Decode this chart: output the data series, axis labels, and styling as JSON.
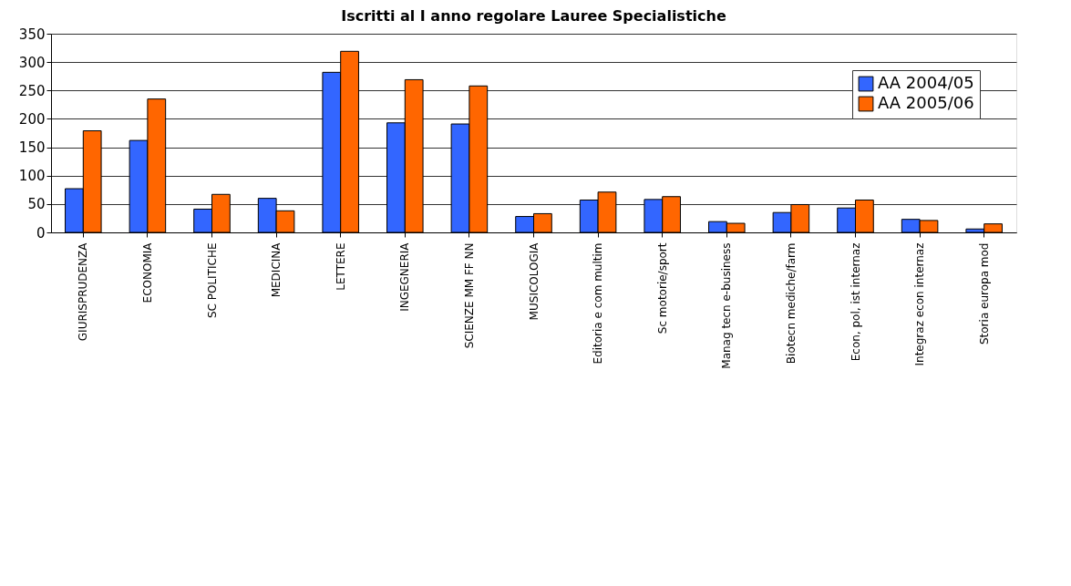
{
  "chart_data": {
    "type": "bar",
    "title": "Iscritti al I anno regolare Lauree Specialistiche",
    "categories": [
      "GIURISPRUDENZA",
      "ECONOMIA",
      "SC POLITICHE",
      "MEDICINA",
      "LETTERE",
      "INGEGNERIA",
      "SCIENZE MM FF NN",
      "MUSICOLOGIA",
      "Editoria e com multim",
      "Sc motorie/sport",
      "Manag tecn e-business",
      "Biotecn mediche/farm",
      "Econ, pol, ist internaz",
      "Integraz econ internaz",
      "Storia europa mod"
    ],
    "series": [
      {
        "name": "AA 2004/05",
        "color": "#3366ff",
        "values": [
          77,
          162,
          41,
          60,
          282,
          193,
          191,
          28,
          57,
          58,
          19,
          35,
          43,
          23,
          6
        ]
      },
      {
        "name": "AA 2005/06",
        "color": "#ff6600",
        "values": [
          179,
          235,
          67,
          38,
          319,
          269,
          258,
          33,
          71,
          63,
          16,
          49,
          57,
          21,
          15
        ]
      }
    ],
    "ylim": [
      0,
      350
    ],
    "yticks": [
      0,
      50,
      100,
      150,
      200,
      250,
      300,
      350
    ],
    "grid": "y",
    "legend": "top right"
  }
}
